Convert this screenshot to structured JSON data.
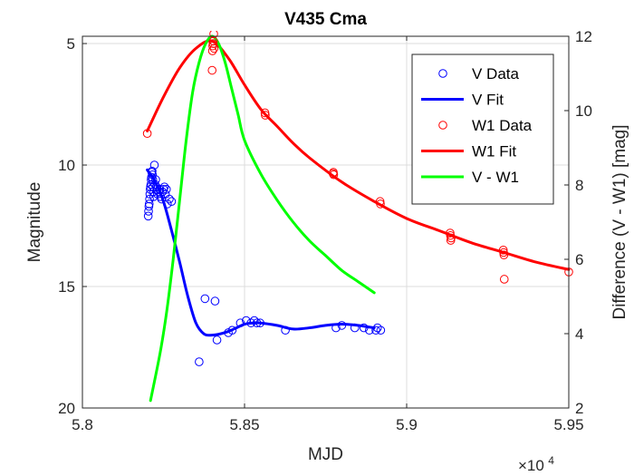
{
  "chart_data": {
    "type": "line",
    "title": "V435 Cma",
    "xlabel": "MJD",
    "ylabel_left": "Magnitude",
    "ylabel_right": "Difference (V - W1) [mag]",
    "x_exponent": {
      "base": "×10",
      "power": "4"
    },
    "xlim": [
      58000,
      59500
    ],
    "ylim_left": [
      4.7,
      20
    ],
    "left_axis_reversed": true,
    "ylim_right": [
      2,
      12
    ],
    "grid": true,
    "legend_position": "top-right",
    "x_ticks": [
      {
        "value": 58000,
        "label": "5.8"
      },
      {
        "value": 58500,
        "label": "5.85"
      },
      {
        "value": 59000,
        "label": "5.9"
      },
      {
        "value": 59500,
        "label": "5.95"
      }
    ],
    "y_left_ticks": [
      {
        "value": 5,
        "label": "5"
      },
      {
        "value": 10,
        "label": "10"
      },
      {
        "value": 15,
        "label": "15"
      },
      {
        "value": 20,
        "label": "20"
      }
    ],
    "y_right_ticks": [
      {
        "value": 2,
        "label": "2"
      },
      {
        "value": 4,
        "label": "4"
      },
      {
        "value": 6,
        "label": "6"
      },
      {
        "value": 8,
        "label": "8"
      },
      {
        "value": 10,
        "label": "10"
      },
      {
        "value": 12,
        "label": "12"
      }
    ],
    "series": [
      {
        "name": "V Data",
        "style": "markers",
        "axis": "left",
        "color": "#0000ff",
        "x": [
          58203,
          58204,
          58205,
          58206,
          58207,
          58208,
          58209,
          58210,
          58211,
          58212,
          58213,
          58214,
          58215,
          58216,
          58217,
          58218,
          58219,
          58220,
          58222,
          58224,
          58226,
          58228,
          58230,
          58232,
          58235,
          58238,
          58241,
          58244,
          58247,
          58250,
          58253,
          58256,
          58259,
          58262,
          58268,
          58275,
          58360,
          58378,
          58409,
          58415,
          58450,
          58462,
          58487,
          58505,
          58520,
          58530,
          58538,
          58548,
          58626,
          58782,
          58800,
          58840,
          58868,
          58885,
          58905,
          58910,
          58920
        ],
        "y": [
          12.1,
          11.9,
          11.7,
          11.6,
          11.4,
          11.2,
          11.0,
          10.9,
          10.8,
          10.6,
          10.5,
          10.3,
          10.25,
          10.4,
          10.6,
          10.9,
          11.1,
          11.3,
          10.0,
          10.8,
          10.6,
          10.9,
          11.0,
          11.2,
          11.1,
          11.0,
          11.3,
          11.4,
          11.1,
          11.0,
          10.9,
          11.2,
          11.0,
          11.6,
          11.4,
          11.5,
          18.1,
          15.5,
          15.6,
          17.2,
          16.9,
          16.8,
          16.5,
          16.4,
          16.5,
          16.4,
          16.5,
          16.5,
          16.8,
          16.7,
          16.6,
          16.7,
          16.7,
          16.8,
          16.8,
          16.7,
          16.8
        ]
      },
      {
        "name": "V Fit",
        "style": "line",
        "axis": "left",
        "color": "#0000ff",
        "x": [
          58200,
          58225,
          58250,
          58275,
          58300,
          58325,
          58350,
          58375,
          58400,
          58425,
          58450,
          58475,
          58500,
          58525,
          58550,
          58600,
          58650,
          58700,
          58750,
          58800,
          58850,
          58875,
          58900
        ],
        "y": [
          10.2,
          10.7,
          11.5,
          12.7,
          14.0,
          15.4,
          16.5,
          16.95,
          17.0,
          16.95,
          16.85,
          16.7,
          16.55,
          16.5,
          16.5,
          16.6,
          16.75,
          16.7,
          16.6,
          16.55,
          16.6,
          16.65,
          16.7
        ]
      },
      {
        "name": "W1 Data",
        "style": "markers",
        "axis": "left",
        "color": "#ff0000",
        "x": [
          58200,
          58400,
          58401,
          58402,
          58403,
          58404,
          58405,
          58406,
          58563,
          58564,
          58773,
          58774,
          58775,
          58918,
          58919,
          59134,
          59135,
          59136,
          59137,
          59298,
          59299,
          59300,
          59301,
          59500
        ],
        "y": [
          8.7,
          6.1,
          5.3,
          5.1,
          5.0,
          4.9,
          4.6,
          5.2,
          7.85,
          7.95,
          10.35,
          10.3,
          10.4,
          11.5,
          11.6,
          12.8,
          12.9,
          13.1,
          13.0,
          13.5,
          13.6,
          13.7,
          14.7,
          14.4
        ]
      },
      {
        "name": "W1 Fit",
        "style": "line",
        "axis": "left",
        "color": "#ff0000",
        "x": [
          58200,
          58250,
          58300,
          58350,
          58400,
          58450,
          58500,
          58550,
          58600,
          58650,
          58700,
          58800,
          58900,
          59000,
          59100,
          59200,
          59300,
          59400,
          59500
        ],
        "y": [
          8.6,
          7.2,
          6.0,
          5.2,
          4.9,
          5.6,
          6.7,
          7.7,
          8.4,
          9.1,
          9.7,
          10.7,
          11.5,
          12.2,
          12.7,
          13.2,
          13.6,
          14.0,
          14.3
        ]
      },
      {
        "name": "V - W1",
        "style": "line",
        "axis": "right",
        "color": "#00ff00",
        "x": [
          58210,
          58240,
          58260,
          58280,
          58300,
          58320,
          58340,
          58360,
          58380,
          58400,
          58420,
          58440,
          58460,
          58480,
          58500,
          58550,
          58600,
          58650,
          58700,
          58750,
          58800,
          58850,
          58900
        ],
        "y": [
          2.2,
          3.5,
          4.6,
          6.0,
          7.6,
          9.2,
          10.5,
          11.3,
          11.8,
          12.0,
          11.8,
          11.3,
          10.6,
          9.9,
          9.2,
          8.3,
          7.6,
          7.0,
          6.5,
          6.1,
          5.7,
          5.4,
          5.1
        ]
      }
    ]
  }
}
